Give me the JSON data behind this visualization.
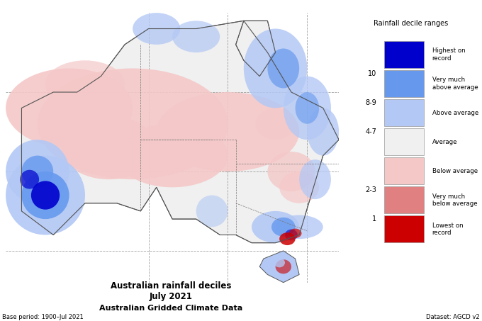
{
  "title_line1": "Australian rainfall deciles",
  "title_line2": "July 2021",
  "title_line3": "Australian Gridded Climate Data",
  "base_period_text": "Base period: 1900–Jul 2021",
  "dataset_text": "Dataset: AGCD v2",
  "legend_title": "Rainfall decile ranges",
  "legend_entries": [
    {
      "label": "Highest on\nrecord",
      "color": "#0000cc"
    },
    {
      "label": "Very much\nabove average",
      "color": "#6699ee"
    },
    {
      "label": "Above average",
      "color": "#b3c8f5"
    },
    {
      "label": "Average",
      "color": "#f0f0f0"
    },
    {
      "label": "Below average",
      "color": "#f5c8c8"
    },
    {
      "label": "Very much\nbelow average",
      "color": "#e08080"
    },
    {
      "label": "Lowest on\nrecord",
      "color": "#cc0000"
    }
  ],
  "legend_numbers": [
    "10",
    "8-9",
    "4-7",
    "2-3",
    "1"
  ],
  "map_extent": [
    112,
    154,
    -44,
    -10
  ],
  "background_color": "#ffffff",
  "grid_color": "#888888",
  "grid_lons": [
    130,
    140,
    150
  ],
  "grid_lats": [
    -20,
    -30,
    -40
  ],
  "figsize": [
    6.8,
    4.53
  ],
  "dpi": 100,
  "colors": {
    "highest": "#0000cc",
    "very_above": "#6699ee",
    "above": "#b3c8f5",
    "average": "#f0f0f0",
    "below": "#f5c8c8",
    "very_below": "#e08080",
    "lowest": "#cc0000",
    "land_bg": "#f0f0f0",
    "ocean": "#ffffff",
    "border": "#555555",
    "state_line": "#777777"
  }
}
